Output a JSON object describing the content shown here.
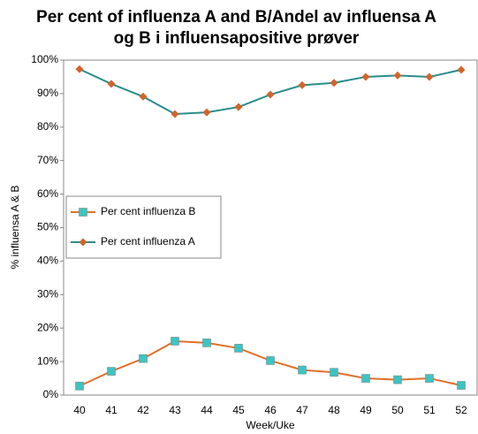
{
  "chart_data": {
    "type": "line",
    "title": "Per cent of influenza A and B/Andel av influensa A og B i influensapositive prøver",
    "x_label": "Week/Uke",
    "y_label": "% influensa A & B",
    "categories": [
      "40",
      "41",
      "42",
      "43",
      "44",
      "45",
      "46",
      "47",
      "48",
      "49",
      "50",
      "51",
      "52"
    ],
    "series": [
      {
        "name": "Per cent influenza B",
        "color": "#e0702a",
        "marker_color": "#3cc4c4",
        "marker": "square",
        "values": [
          2.7,
          7.1,
          10.9,
          16.1,
          15.6,
          14.0,
          10.3,
          7.5,
          6.8,
          5.0,
          4.6,
          5.0,
          2.9
        ]
      },
      {
        "name": "Per cent influenza A",
        "color": "#2a8c8c",
        "marker_color": "#d2642a",
        "marker": "diamond",
        "values": [
          97.3,
          92.9,
          89.1,
          83.9,
          84.4,
          86.0,
          89.7,
          92.5,
          93.2,
          95.0,
          95.4,
          95.0,
          97.1
        ]
      }
    ],
    "ylim": [
      0,
      100
    ],
    "yticks": [
      {
        "value": 0,
        "label": "0%"
      },
      {
        "value": 10,
        "label": "10%"
      },
      {
        "value": 20,
        "label": "20%"
      },
      {
        "value": 30,
        "label": "30%"
      },
      {
        "value": 40,
        "label": "40%"
      },
      {
        "value": 50,
        "label": "50%"
      },
      {
        "value": 60,
        "label": "60%"
      },
      {
        "value": 70,
        "label": "70%"
      },
      {
        "value": 80,
        "label": "80%"
      },
      {
        "value": 90,
        "label": "90%"
      },
      {
        "value": 100,
        "label": "100%"
      }
    ],
    "grid": false
  }
}
